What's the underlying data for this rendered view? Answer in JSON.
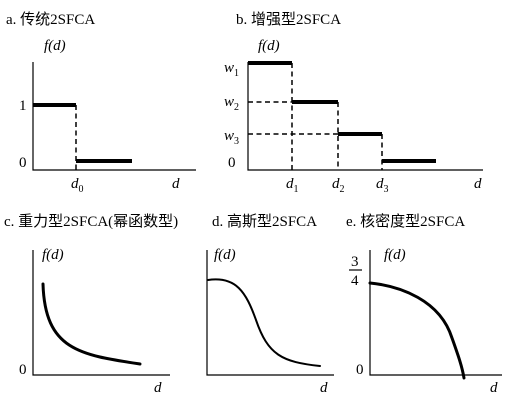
{
  "panels": {
    "a": {
      "title": "a. 传统2SFCA",
      "ylabel": "f(d)",
      "xlabel": "d",
      "tick_y_high": "1",
      "tick_y_low": "0",
      "tick_x": "d",
      "tick_x_sub": "0"
    },
    "b": {
      "title": "b. 增强型2SFCA",
      "ylabel": "f(d)",
      "xlabel": "d",
      "tick_y_zero": "0",
      "w_labels": [
        {
          "base": "w",
          "sub": "1"
        },
        {
          "base": "w",
          "sub": "2"
        },
        {
          "base": "w",
          "sub": "3"
        }
      ],
      "d_labels": [
        {
          "base": "d",
          "sub": "1"
        },
        {
          "base": "d",
          "sub": "2"
        },
        {
          "base": "d",
          "sub": "3"
        }
      ]
    },
    "c": {
      "title": "c. 重力型2SFCA(幂函数型)",
      "ylabel": "f(d)",
      "xlabel": "d",
      "tick_y_low": "0"
    },
    "d": {
      "title": "d. 高斯型2SFCA",
      "ylabel": "f(d)",
      "xlabel": "d"
    },
    "e": {
      "title": "e. 核密度型2SFCA",
      "ylabel": "f(d)",
      "xlabel": "d",
      "tick_y_low": "0",
      "tick_frac_num": "3",
      "tick_frac_den": "4"
    }
  }
}
